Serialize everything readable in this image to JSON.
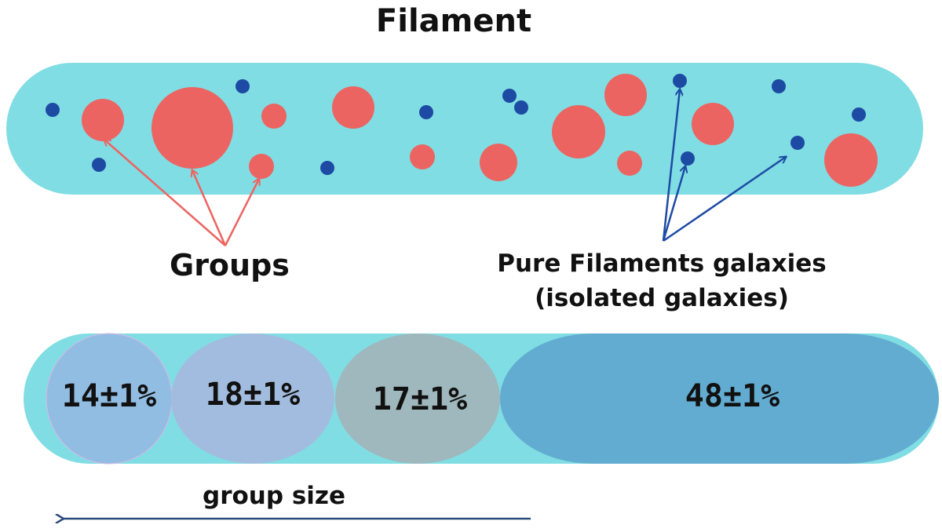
{
  "title": "Filament",
  "labels": {
    "groups": "Groups",
    "pure_line1": "Pure Filaments galaxies",
    "pure_line2": "(isolated galaxies)",
    "group_size": "group size"
  },
  "fractions": [
    "14±1%",
    "18±1%",
    "17±1%",
    "48±1%"
  ],
  "colors": {
    "filament": "#80dde3",
    "group": "#ec6461",
    "isolated": "#1d4ba4",
    "groups_arrow": "#ec6461",
    "isolated_arrow": "#1d4ba4",
    "bin_1": "#92bde3",
    "bin_2": "#a2bcdf",
    "bin_3": "#9fb8bd",
    "bin_4": "#63acd1",
    "size_arrow": "#2a4a7c"
  }
}
